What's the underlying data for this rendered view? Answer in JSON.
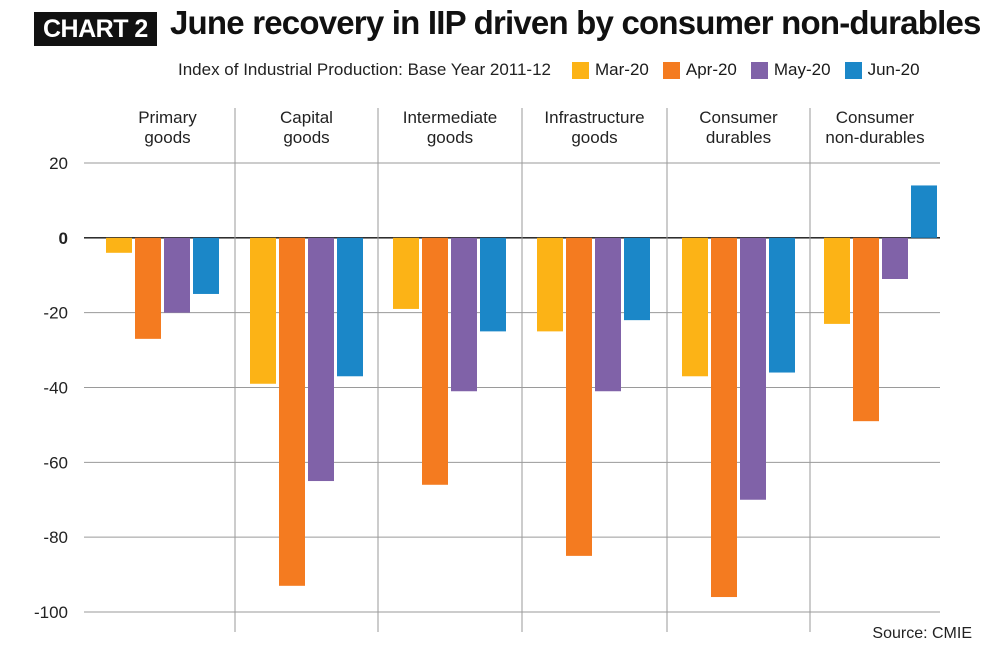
{
  "header": {
    "tag": "CHART 2",
    "title": "June recovery in IIP driven by consumer non-durables",
    "subtitle": "Index of Industrial Production: Base Year 2011-12"
  },
  "source": "Source: CMIE",
  "colors": {
    "Mar-20": "#fcb316",
    "Apr-20": "#f47b20",
    "May-20": "#8062a8",
    "Jun-20": "#1b87c8"
  },
  "chart_data": {
    "type": "bar",
    "title": "June recovery in IIP driven by consumer non-durables",
    "subtitle": "Index of Industrial Production: Base Year 2011-12",
    "categories": [
      [
        "Primary",
        "goods"
      ],
      [
        "Capital",
        "goods"
      ],
      [
        "Intermediate",
        "goods"
      ],
      [
        "Infrastructure",
        "goods"
      ],
      [
        "Consumer",
        "durables"
      ],
      [
        "Consumer",
        "non-durables"
      ]
    ],
    "series": [
      {
        "name": "Mar-20",
        "values": [
          -4,
          -39,
          -19,
          -25,
          -37,
          -23
        ]
      },
      {
        "name": "Apr-20",
        "values": [
          -27,
          -93,
          -66,
          -85,
          -96,
          -49
        ]
      },
      {
        "name": "May-20",
        "values": [
          -20,
          -65,
          -41,
          -41,
          -70,
          -11
        ]
      },
      {
        "name": "Jun-20",
        "values": [
          -15,
          -37,
          -25,
          -22,
          -36,
          14
        ]
      }
    ],
    "ylim": [
      -100,
      20
    ],
    "yticks": [
      20,
      0,
      -20,
      -40,
      -60,
      -80,
      -100
    ],
    "grid": true,
    "legend": "top-right"
  }
}
